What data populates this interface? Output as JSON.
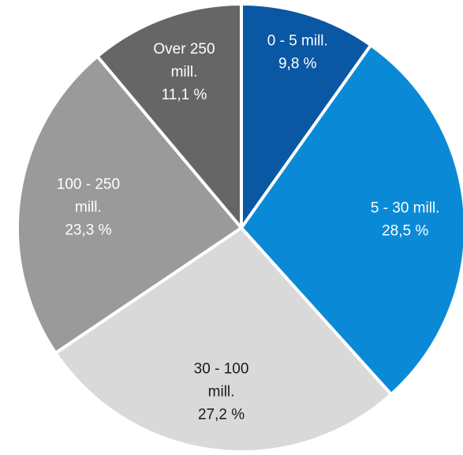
{
  "chart_data": {
    "type": "pie",
    "title": "",
    "start": "top",
    "direction": "clockwise",
    "slices": [
      {
        "label_lines": [
          "0 - 5 mill."
        ],
        "value": 9.8,
        "value_label": "9,8 %",
        "color": "#0a57a4",
        "text_color": "#ffffff"
      },
      {
        "label_lines": [
          "5 - 30 mill."
        ],
        "value": 28.5,
        "value_label": "28,5 %",
        "color": "#0a8ad6",
        "text_color": "#ffffff"
      },
      {
        "label_lines": [
          "30 - 100",
          "mill."
        ],
        "value": 27.2,
        "value_label": "27,2 %",
        "color": "#d9d9d9",
        "text_color": "#1a1a1a"
      },
      {
        "label_lines": [
          "100 - 250",
          "mill."
        ],
        "value": 23.3,
        "value_label": "23,3 %",
        "color": "#9a9a9a",
        "text_color": "#ffffff"
      },
      {
        "label_lines": [
          "Over 250",
          "mill."
        ],
        "value": 11.1,
        "value_label": "11,1 %",
        "color": "#666666",
        "text_color": "#ffffff"
      }
    ]
  }
}
